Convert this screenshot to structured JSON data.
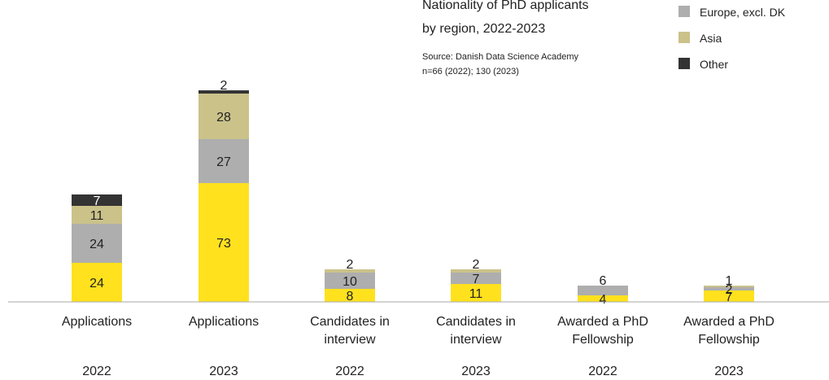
{
  "title": {
    "line1": "Nationality of PhD applicants",
    "line2": "by region, 2022-2023"
  },
  "source": {
    "line1": "Source: Danish Data Science Academy",
    "line2": "n=66 (2022); 130 (2023)"
  },
  "chart_data": {
    "type": "bar",
    "stacked": true,
    "categories": [
      {
        "label_lines": [
          "Applications"
        ],
        "year": "2022"
      },
      {
        "label_lines": [
          "Applications"
        ],
        "year": "2023"
      },
      {
        "label_lines": [
          "Candidates in",
          "interview"
        ],
        "year": "2022"
      },
      {
        "label_lines": [
          "Candidates in",
          "interview"
        ],
        "year": "2023"
      },
      {
        "label_lines": [
          "Awarded a PhD",
          "Fellowship"
        ],
        "year": "2022"
      },
      {
        "label_lines": [
          "Awarded a PhD",
          "Fellowship"
        ],
        "year": "2023"
      }
    ],
    "series": [
      {
        "key": "denmark",
        "color": "#FFE11E",
        "text_color": "#222222",
        "values": [
          24,
          73,
          8,
          11,
          4,
          7
        ]
      },
      {
        "key": "europe",
        "name": "Europe, excl. DK",
        "color": "#AEAEAE",
        "text_color": "#222222",
        "values": [
          24,
          27,
          10,
          7,
          6,
          2
        ]
      },
      {
        "key": "asia",
        "name": "Asia",
        "color": "#CBC28A",
        "text_color": "#222222",
        "values": [
          11,
          28,
          2,
          2,
          0,
          1
        ]
      },
      {
        "key": "other",
        "name": "Other",
        "color": "#333333",
        "text_color": "#ffffff",
        "values": [
          7,
          2,
          0,
          0,
          0,
          0
        ]
      }
    ],
    "legend": [
      {
        "label": "Europe, excl. DK",
        "color": "#AEAEAE"
      },
      {
        "label": "Asia",
        "color": "#CBC28A"
      },
      {
        "label": "Other",
        "color": "#333333"
      }
    ],
    "legend_position": "top-right",
    "grid": false
  }
}
